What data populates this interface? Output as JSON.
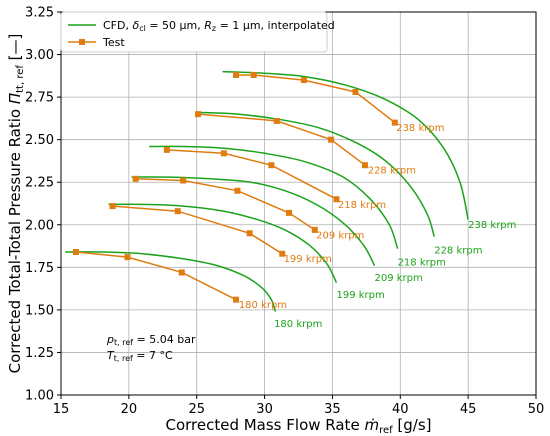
{
  "chart_data": {
    "type": "line",
    "xlabel": "Corrected Mass Flow Rate ṁref [g/s]",
    "xlabel_parts": {
      "main": "Corrected Mass Flow Rate ",
      "sym": "ṁ",
      "sub": "ref",
      "unit": " [g/s]"
    },
    "ylabel": "Corrected Total-Total Pressure Ratio Πtt, ref [—]",
    "ylabel_parts": {
      "main": "Corrected Total-Total Pressure Ratio ",
      "sym": "Π",
      "sub": "tt, ref",
      "unit": " [—]"
    },
    "xlim": [
      15,
      50
    ],
    "ylim": [
      1.0,
      3.25
    ],
    "xticks": [
      15,
      20,
      25,
      30,
      35,
      40,
      45,
      50
    ],
    "yticks": [
      1.0,
      1.25,
      1.5,
      1.75,
      2.0,
      2.25,
      2.5,
      2.75,
      3.0,
      3.25
    ],
    "legend": {
      "placement": "top-left",
      "cfd_label_parts": {
        "a": "CFD, ",
        "b": "δ",
        "c": "cl",
        "d": " = 50 μm, ",
        "e": "R",
        "f": "z",
        "g": " = 1 μm, interpolated"
      },
      "test_label": "Test"
    },
    "conditions": {
      "line1": {
        "sym": "p",
        "sub": "t, ref",
        "text": " = 5.04 bar"
      },
      "line2": {
        "sym": "T",
        "sub": "t, ref",
        "text": " = 7 °C"
      }
    },
    "colors": {
      "cfd": "#1aa31a",
      "test": "#e07b10"
    },
    "cfd_series": [
      {
        "name": "180 krpm",
        "points": [
          [
            15.3,
            1.84
          ],
          [
            18,
            1.84
          ],
          [
            21,
            1.83
          ],
          [
            24,
            1.8
          ],
          [
            26.5,
            1.76
          ],
          [
            28.5,
            1.7
          ],
          [
            29.8,
            1.63
          ],
          [
            30.5,
            1.56
          ],
          [
            30.8,
            1.49
          ]
        ]
      },
      {
        "name": "199 krpm",
        "points": [
          [
            18.5,
            2.12
          ],
          [
            21,
            2.12
          ],
          [
            24,
            2.11
          ],
          [
            27,
            2.08
          ],
          [
            29.5,
            2.03
          ],
          [
            31.5,
            1.97
          ],
          [
            33.3,
            1.88
          ],
          [
            34.6,
            1.77
          ],
          [
            35.3,
            1.66
          ]
        ]
      },
      {
        "name": "209 krpm",
        "points": [
          [
            20.2,
            2.28
          ],
          [
            23,
            2.28
          ],
          [
            26,
            2.27
          ],
          [
            29,
            2.25
          ],
          [
            31.5,
            2.2
          ],
          [
            33.8,
            2.12
          ],
          [
            35.8,
            2.01
          ],
          [
            37.3,
            1.88
          ],
          [
            38.1,
            1.76
          ]
        ]
      },
      {
        "name": "218 krpm",
        "points": [
          [
            21.5,
            2.46
          ],
          [
            24,
            2.46
          ],
          [
            27,
            2.45
          ],
          [
            30,
            2.42
          ],
          [
            33,
            2.37
          ],
          [
            35.8,
            2.28
          ],
          [
            37.8,
            2.15
          ],
          [
            39.2,
            2.0
          ],
          [
            39.8,
            1.86
          ]
        ]
      },
      {
        "name": "228 krpm",
        "points": [
          [
            25,
            2.66
          ],
          [
            28,
            2.65
          ],
          [
            31,
            2.62
          ],
          [
            34,
            2.57
          ],
          [
            36.8,
            2.48
          ],
          [
            39,
            2.37
          ],
          [
            40.8,
            2.22
          ],
          [
            42,
            2.06
          ],
          [
            42.5,
            1.93
          ]
        ]
      },
      {
        "name": "238 krpm",
        "points": [
          [
            26.9,
            2.9
          ],
          [
            30,
            2.89
          ],
          [
            33,
            2.87
          ],
          [
            36,
            2.82
          ],
          [
            38.8,
            2.74
          ],
          [
            41.3,
            2.62
          ],
          [
            43.2,
            2.45
          ],
          [
            44.4,
            2.25
          ],
          [
            45,
            2.03
          ]
        ]
      }
    ],
    "cfd_labels": [
      {
        "text": "180 krpm",
        "at": [
          30.7,
          1.4
        ]
      },
      {
        "text": "199 krpm",
        "at": [
          35.3,
          1.57
        ]
      },
      {
        "text": "209 krpm",
        "at": [
          38.1,
          1.67
        ]
      },
      {
        "text": "218 krpm",
        "at": [
          39.8,
          1.76
        ]
      },
      {
        "text": "228 krpm",
        "at": [
          42.5,
          1.83
        ]
      },
      {
        "text": "238 krpm",
        "at": [
          45.0,
          1.98
        ]
      }
    ],
    "test_series": [
      {
        "name": "180 krpm",
        "points": [
          [
            16.1,
            1.84
          ],
          [
            19.9,
            1.81
          ],
          [
            23.9,
            1.72
          ],
          [
            27.9,
            1.56
          ]
        ]
      },
      {
        "name": "199 krpm",
        "points": [
          [
            18.8,
            2.11
          ],
          [
            23.6,
            2.08
          ],
          [
            28.9,
            1.95
          ],
          [
            31.3,
            1.83
          ]
        ]
      },
      {
        "name": "209 krpm",
        "points": [
          [
            20.5,
            2.27
          ],
          [
            24.0,
            2.26
          ],
          [
            28.0,
            2.2
          ],
          [
            31.8,
            2.07
          ],
          [
            33.7,
            1.97
          ]
        ]
      },
      {
        "name": "218 krpm",
        "points": [
          [
            22.8,
            2.44
          ],
          [
            27.0,
            2.42
          ],
          [
            30.5,
            2.35
          ],
          [
            35.3,
            2.15
          ]
        ]
      },
      {
        "name": "228 krpm",
        "points": [
          [
            25.1,
            2.65
          ],
          [
            30.9,
            2.61
          ],
          [
            34.9,
            2.5
          ],
          [
            37.4,
            2.35
          ]
        ]
      },
      {
        "name": "238 krpm",
        "points": [
          [
            27.9,
            2.88
          ],
          [
            29.2,
            2.88
          ],
          [
            32.9,
            2.85
          ],
          [
            36.7,
            2.78
          ],
          [
            39.6,
            2.6
          ]
        ]
      }
    ],
    "test_labels": [
      {
        "text": "180 krpm",
        "at": [
          28.1,
          1.51
        ]
      },
      {
        "text": "199 krpm",
        "at": [
          31.4,
          1.78
        ]
      },
      {
        "text": "209 krpm",
        "at": [
          33.8,
          1.92
        ]
      },
      {
        "text": "218 krpm",
        "at": [
          35.4,
          2.1
        ]
      },
      {
        "text": "228 krpm",
        "at": [
          37.6,
          2.3
        ]
      },
      {
        "text": "238 krpm",
        "at": [
          39.7,
          2.55
        ]
      }
    ]
  }
}
